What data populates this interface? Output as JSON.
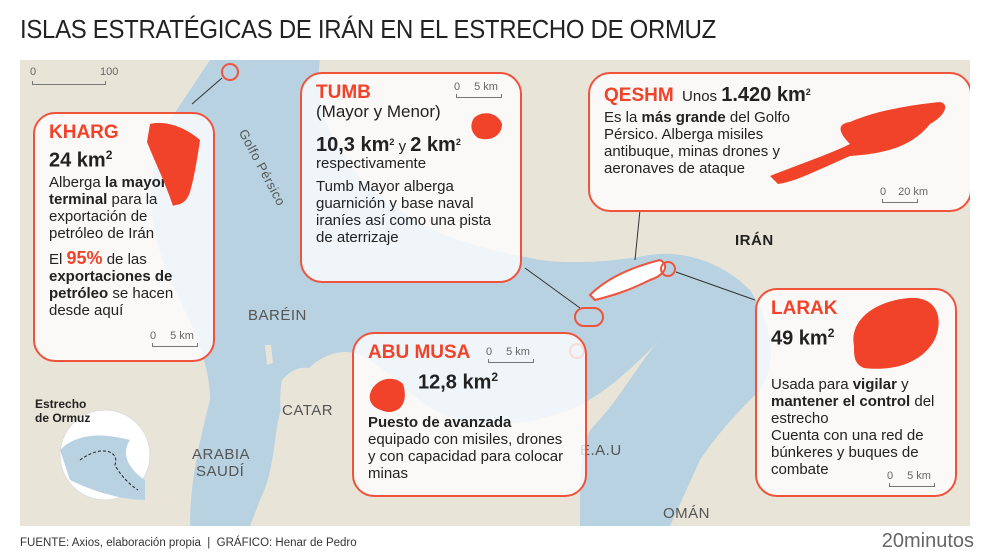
{
  "title": "ISLAS ESTRATÉGICAS DE IRÁN EN EL ESTRECHO DE ORMUZ",
  "colors": {
    "accent": "#f0432a",
    "sea": "#b8d2e2",
    "land": "#e8e4d8"
  },
  "map_scale": {
    "zero": "0",
    "max": "100"
  },
  "labels": {
    "gulf": "Golfo Pérsico",
    "bahrain": "BARÉIN",
    "qatar": "CATAR",
    "saudi1": "ARABIA",
    "saudi2": "SAUDÍ",
    "uae": "E.A.U",
    "oman": "OMÁN",
    "iran": "IRÁN",
    "strait1": "Estrecho",
    "strait2": "de Ormuz"
  },
  "kharg": {
    "name": "KHARG",
    "area": "24 km",
    "sup": "2",
    "t1": "Alberga ",
    "t1b": "la mayor terminal",
    "t2": " para la exportación de petróleo de Irán",
    "p1": "El ",
    "p1r": "95%",
    "p2": " de las ",
    "p2b": "exportaciones de petróleo",
    "p3": " se hacen desde aquí",
    "scale0": "0",
    "scale1": "5 km"
  },
  "tumb": {
    "name": "TUMB",
    "sub": "(Mayor y Menor)",
    "a1": "10,3 km",
    "sup": "2",
    "mid": " y ",
    "a2": "2 km",
    "after": "respectivamente",
    "desc": "Tumb Mayor alberga guarnición y base naval iraníes así como una pista de aterrizaje",
    "scale0": "0",
    "scale1": "5 km"
  },
  "qeshm": {
    "name": "QESHM",
    "pre": "Unos ",
    "area": "1.420 km",
    "sup": "2",
    "t1": "Es la ",
    "t1b": "más grande",
    "t2": " del Golfo Pérsico. Alberga misiles antibuque, minas drones y aeronaves de ataque",
    "scale0": "0",
    "scale1": "20 km"
  },
  "abumusa": {
    "name": "ABU MUSA",
    "area": "12,8 km",
    "sup": "2",
    "t1b": "Puesto de avanzada",
    "t2": " equipado con misiles, drones y con capacidad para colocar minas",
    "scale0": "0",
    "scale1": "5 km"
  },
  "larak": {
    "name": "LARAK",
    "area": "49 km",
    "sup": "2",
    "t1": "Usada para ",
    "t1b": "vigilar",
    "t2": " y ",
    "t2b": "mantener el control",
    "t3": " del estrecho",
    "t4": "Cuenta con una red de búnkeres y buques de combate",
    "scale0": "0",
    "scale1": "5 km"
  },
  "footer": "FUENTE: Axios, elaboración propia  |  GRÁFICO: Henar de Pedro",
  "brand": "20minutos"
}
